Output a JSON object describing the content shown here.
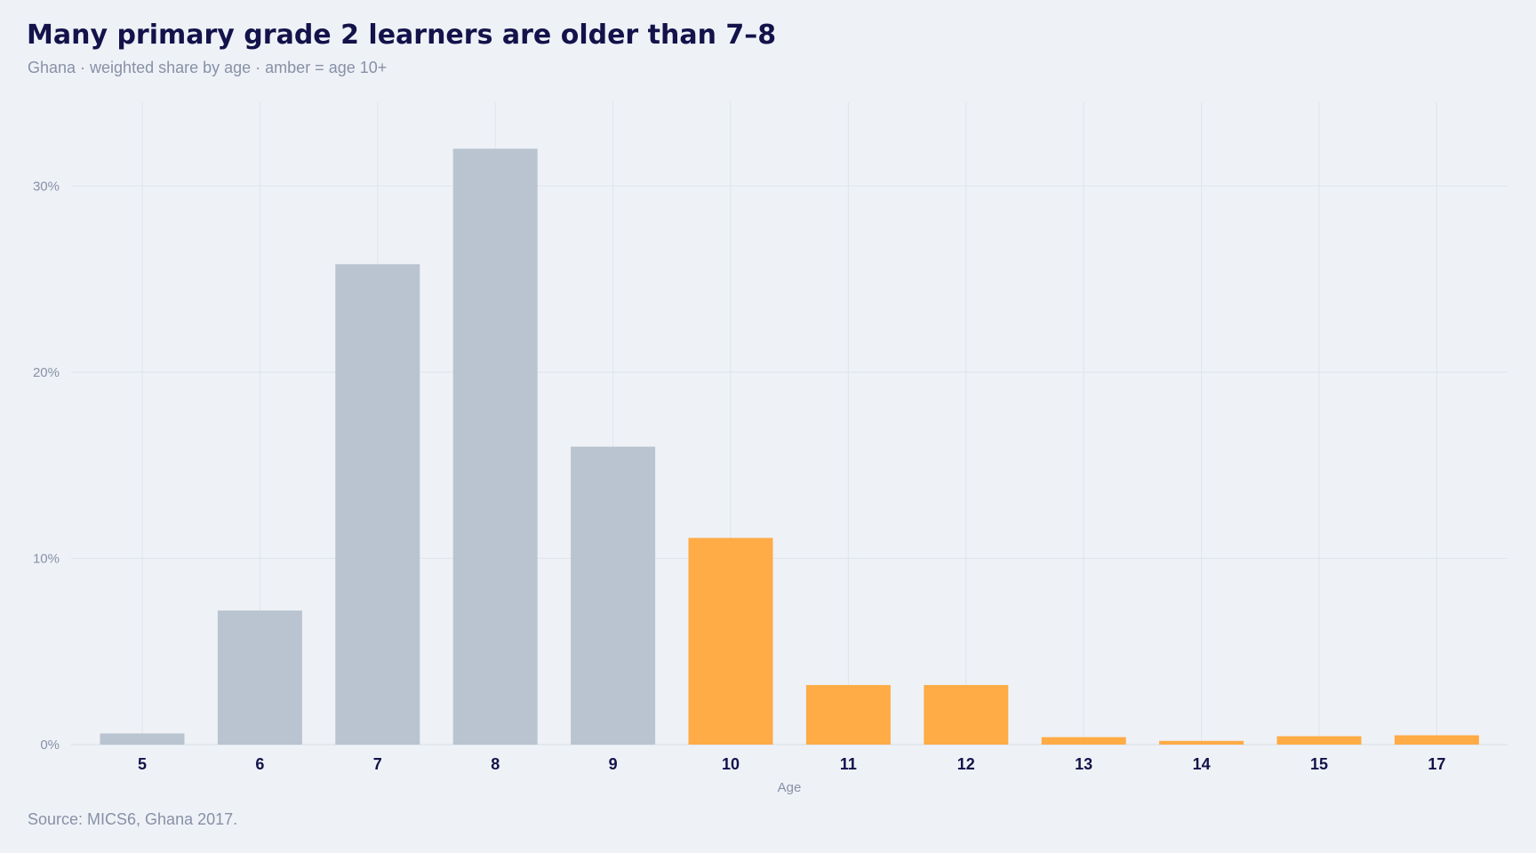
{
  "header": {
    "title": "Many primary grade 2 learners are older than 7–8",
    "subtitle": "Ghana · weighted share by age · amber = age 10+"
  },
  "footer": {
    "source": "Source: MICS6, Ghana 2017."
  },
  "colors": {
    "base_bar": "#b9c4d0",
    "highlight_bar": "#ffab46",
    "grid": "#dfe4ea",
    "axis_text": "#8790a6",
    "title_text": "#14124a",
    "background": "#eef2f7"
  },
  "chart_data": {
    "type": "bar",
    "title": "Many primary grade 2 learners are older than 7–8",
    "subtitle": "Ghana · weighted share by age · amber = age 10+",
    "xlabel": "Age",
    "ylabel": "",
    "categories": [
      "5",
      "6",
      "7",
      "8",
      "9",
      "10",
      "11",
      "12",
      "13",
      "14",
      "15",
      "17"
    ],
    "values": [
      0.6,
      7.2,
      25.8,
      32.0,
      16.0,
      11.1,
      3.2,
      3.2,
      0.4,
      0.2,
      0.45,
      0.5
    ],
    "highlight_categories": [
      "10",
      "11",
      "12",
      "13",
      "14",
      "15",
      "17"
    ],
    "ylim": [
      0,
      34.5
    ],
    "yticks": [
      0,
      10,
      20,
      30
    ],
    "ytick_labels": [
      "0%",
      "10%",
      "20%",
      "30%"
    ],
    "grid": true,
    "legend": "none"
  }
}
